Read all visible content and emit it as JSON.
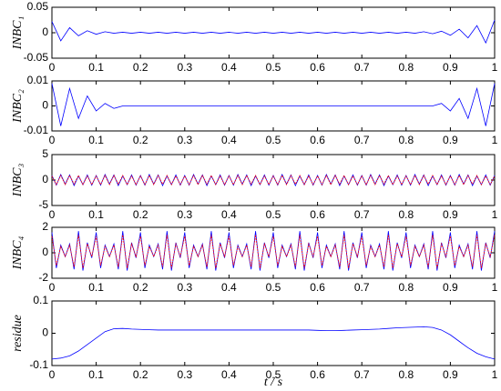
{
  "chart_data": [
    {
      "type": "line",
      "ylabel": "INBC₁",
      "x": [
        0,
        0.02,
        0.04,
        0.06,
        0.08,
        0.1,
        0.12,
        0.14,
        0.16,
        0.18,
        0.2,
        0.22,
        0.24,
        0.26,
        0.28,
        0.3,
        0.32,
        0.34,
        0.36,
        0.38,
        0.4,
        0.42,
        0.44,
        0.46,
        0.48,
        0.5,
        0.52,
        0.54,
        0.56,
        0.58,
        0.6,
        0.62,
        0.64,
        0.66,
        0.68,
        0.7,
        0.72,
        0.74,
        0.76,
        0.78,
        0.8,
        0.82,
        0.84,
        0.86,
        0.88,
        0.9,
        0.92,
        0.94,
        0.96,
        0.98,
        1
      ],
      "values": [
        0.022,
        -0.016,
        0.01,
        -0.006,
        0.004,
        -0.003,
        0.002,
        -0.001,
        0.001,
        -0.001,
        0.001,
        -0.001,
        0.001,
        -0.001,
        0.001,
        -0.001,
        0.001,
        -0.001,
        0.001,
        -0.001,
        0.001,
        -0.001,
        0.001,
        -0.001,
        0.001,
        -0.001,
        0.001,
        -0.001,
        0.001,
        -0.001,
        0.001,
        -0.001,
        0.001,
        -0.001,
        0.001,
        -0.001,
        0.001,
        -0.001,
        0.001,
        -0.001,
        0.001,
        -0.001,
        0.002,
        -0.002,
        0.003,
        -0.005,
        0.007,
        -0.01,
        0.014,
        -0.02,
        0.025
      ],
      "color": "#0000ff",
      "xlim": [
        0,
        1
      ],
      "xticks": [
        0,
        0.1,
        0.2,
        0.3,
        0.4,
        0.5,
        0.6,
        0.7,
        0.8,
        0.9,
        1
      ],
      "ylim": [
        -0.05,
        0.05
      ],
      "yticks": [
        -0.05,
        0,
        0.05
      ]
    },
    {
      "type": "line",
      "ylabel": "INBC₂",
      "x": [
        0,
        0.02,
        0.04,
        0.06,
        0.08,
        0.1,
        0.12,
        0.14,
        0.16,
        0.18,
        0.2,
        0.22,
        0.24,
        0.26,
        0.28,
        0.3,
        0.32,
        0.34,
        0.36,
        0.38,
        0.4,
        0.42,
        0.44,
        0.46,
        0.48,
        0.5,
        0.52,
        0.54,
        0.56,
        0.58,
        0.6,
        0.62,
        0.64,
        0.66,
        0.68,
        0.7,
        0.72,
        0.74,
        0.76,
        0.78,
        0.8,
        0.82,
        0.84,
        0.86,
        0.88,
        0.9,
        0.92,
        0.94,
        0.96,
        0.98,
        1
      ],
      "values": [
        0.009,
        -0.008,
        0.007,
        -0.005,
        0.004,
        -0.002,
        0.001,
        -0.001,
        0,
        0,
        0,
        0,
        0,
        0,
        0,
        0,
        0,
        0,
        0,
        0,
        0,
        0,
        0,
        0,
        0,
        0,
        0,
        0,
        0,
        0,
        0,
        0,
        0,
        0,
        0,
        0,
        0,
        0,
        0,
        0,
        0,
        0,
        0,
        0,
        0.001,
        -0.002,
        0.003,
        -0.005,
        0.007,
        -0.008,
        0.009
      ],
      "color": "#0000ff",
      "xlim": [
        0,
        1
      ],
      "xticks": [
        0,
        0.1,
        0.2,
        0.3,
        0.4,
        0.5,
        0.6,
        0.7,
        0.8,
        0.9,
        1
      ],
      "ylim": [
        -0.01,
        0.01
      ],
      "yticks": [
        -0.01,
        0,
        0.01
      ]
    },
    {
      "type": "line",
      "ylabel": "INBC₃",
      "x": [
        0,
        0.01,
        0.02,
        0.03,
        0.04,
        0.05,
        0.06,
        0.07,
        0.08,
        0.09,
        0.1,
        0.11,
        0.12,
        0.13,
        0.14,
        0.15,
        0.16,
        0.17,
        0.18,
        0.19,
        0.2,
        0.21,
        0.22,
        0.23,
        0.24,
        0.25,
        0.26,
        0.27,
        0.28,
        0.29,
        0.3,
        0.31,
        0.32,
        0.33,
        0.34,
        0.35,
        0.36,
        0.37,
        0.38,
        0.39,
        0.4,
        0.41,
        0.42,
        0.43,
        0.44,
        0.45,
        0.46,
        0.47,
        0.48,
        0.49,
        0.5,
        0.51,
        0.52,
        0.53,
        0.54,
        0.55,
        0.56,
        0.57,
        0.58,
        0.59,
        0.6,
        0.61,
        0.62,
        0.63,
        0.64,
        0.65,
        0.66,
        0.67,
        0.68,
        0.69,
        0.7,
        0.71,
        0.72,
        0.73,
        0.74,
        0.75,
        0.76,
        0.77,
        0.78,
        0.79,
        0.8,
        0.81,
        0.82,
        0.83,
        0.84,
        0.85,
        0.86,
        0.87,
        0.88,
        0.89,
        0.9,
        0.91,
        0.92,
        0.93,
        0.94,
        0.95,
        0.96,
        0.97,
        0.98,
        0.99,
        1
      ],
      "series": [
        {
          "color": "#0000ff",
          "values": [
            0.9,
            -1,
            1.1,
            -0.8,
            1,
            -1.1,
            0.8,
            -0.9,
            1,
            -1,
            0.9,
            -1,
            1.1,
            -0.8,
            1,
            -1.1,
            0.8,
            -0.9,
            1,
            -1,
            0.9,
            -1,
            1.1,
            -0.8,
            1,
            -1.1,
            0.8,
            -0.9,
            1,
            -1,
            0.9,
            -1,
            1.1,
            -0.8,
            1,
            -1.1,
            0.8,
            -0.9,
            1,
            -1,
            0.9,
            -1,
            1.1,
            -0.8,
            1,
            -1.1,
            0.8,
            -0.9,
            1,
            -1,
            0.9,
            -1,
            1.1,
            -0.8,
            1,
            -1.1,
            0.8,
            -0.9,
            1,
            -1,
            0.9,
            -1,
            1.1,
            -0.8,
            1,
            -1.1,
            0.8,
            -0.9,
            1,
            -1,
            0.9,
            -1,
            1.1,
            -0.8,
            1,
            -1.1,
            0.8,
            -0.9,
            1,
            -1,
            0.9,
            -1,
            1.1,
            -0.8,
            1,
            -1.1,
            0.8,
            -0.9,
            1,
            -1,
            0.9,
            -1,
            1.1,
            -0.8,
            1,
            -1.1,
            0.8,
            -0.9,
            1,
            -1,
            0.9
          ]
        },
        {
          "color": "#ff0000",
          "values": [
            0.8,
            -0.9,
            0.9,
            -0.9,
            0.9,
            -0.8,
            0.9,
            -0.9,
            0.8,
            -0.9,
            0.8,
            -0.9,
            0.9,
            -0.9,
            0.9,
            -0.8,
            0.9,
            -0.9,
            0.8,
            -0.9,
            0.8,
            -0.9,
            0.9,
            -0.9,
            0.9,
            -0.8,
            0.9,
            -0.9,
            0.8,
            -0.9,
            0.8,
            -0.9,
            0.9,
            -0.9,
            0.9,
            -0.8,
            0.9,
            -0.9,
            0.8,
            -0.9,
            0.8,
            -0.9,
            0.9,
            -0.9,
            0.9,
            -0.8,
            0.9,
            -0.9,
            0.8,
            -0.9,
            0.8,
            -0.9,
            0.9,
            -0.9,
            0.9,
            -0.8,
            0.9,
            -0.9,
            0.8,
            -0.9,
            0.8,
            -0.9,
            0.9,
            -0.9,
            0.9,
            -0.8,
            0.9,
            -0.9,
            0.8,
            -0.9,
            0.8,
            -0.9,
            0.9,
            -0.9,
            0.9,
            -0.8,
            0.9,
            -0.9,
            0.8,
            -0.9,
            0.8,
            -0.9,
            0.9,
            -0.9,
            0.9,
            -0.8,
            0.9,
            -0.9,
            0.8,
            -0.9,
            0.8,
            -0.9,
            0.9,
            -0.9,
            0.9,
            -0.8,
            0.9,
            -0.9,
            0.8,
            -0.9,
            0.8
          ]
        }
      ],
      "xlim": [
        0,
        1
      ],
      "xticks": [
        0,
        0.1,
        0.2,
        0.3,
        0.4,
        0.5,
        0.6,
        0.7,
        0.8,
        0.9,
        1
      ],
      "ylim": [
        -5,
        5
      ],
      "yticks": [
        -5,
        0,
        5
      ]
    },
    {
      "type": "line",
      "ylabel": "INBC₄",
      "x": [
        0,
        0.01,
        0.02,
        0.03,
        0.04,
        0.05,
        0.06,
        0.07,
        0.08,
        0.09,
        0.1,
        0.11,
        0.12,
        0.13,
        0.14,
        0.15,
        0.16,
        0.17,
        0.18,
        0.19,
        0.2,
        0.21,
        0.22,
        0.23,
        0.24,
        0.25,
        0.26,
        0.27,
        0.28,
        0.29,
        0.3,
        0.31,
        0.32,
        0.33,
        0.34,
        0.35,
        0.36,
        0.37,
        0.38,
        0.39,
        0.4,
        0.41,
        0.42,
        0.43,
        0.44,
        0.45,
        0.46,
        0.47,
        0.48,
        0.49,
        0.5,
        0.51,
        0.52,
        0.53,
        0.54,
        0.55,
        0.56,
        0.57,
        0.58,
        0.59,
        0.6,
        0.61,
        0.62,
        0.63,
        0.64,
        0.65,
        0.66,
        0.67,
        0.68,
        0.69,
        0.7,
        0.71,
        0.72,
        0.73,
        0.74,
        0.75,
        0.76,
        0.77,
        0.78,
        0.79,
        0.8,
        0.81,
        0.82,
        0.83,
        0.84,
        0.85,
        0.86,
        0.87,
        0.88,
        0.89,
        0.9,
        0.91,
        0.92,
        0.93,
        0.94,
        0.95,
        0.96,
        0.97,
        0.98,
        0.99,
        1
      ],
      "series": [
        {
          "color": "#0000ff",
          "values": [
            1.6,
            -1.2,
            0.6,
            -0.3,
            0.7,
            -1.3,
            1.7,
            -1.4,
            0.8,
            -0.4,
            1.6,
            -1.2,
            0.6,
            -0.3,
            0.7,
            -1.3,
            1.7,
            -1.4,
            0.8,
            -0.4,
            1.6,
            -1.2,
            0.6,
            -0.3,
            0.7,
            -1.3,
            1.7,
            -1.4,
            0.8,
            -0.4,
            1.6,
            -1.2,
            0.6,
            -0.3,
            0.7,
            -1.3,
            1.7,
            -1.4,
            0.8,
            -0.4,
            1.6,
            -1.2,
            0.6,
            -0.3,
            0.7,
            -1.3,
            1.7,
            -1.4,
            0.8,
            -0.4,
            1.6,
            -1.2,
            0.6,
            -0.3,
            0.7,
            -1.3,
            1.7,
            -1.4,
            0.8,
            -0.4,
            1.6,
            -1.2,
            0.6,
            -0.3,
            0.7,
            -1.3,
            1.7,
            -1.4,
            0.8,
            -0.4,
            1.6,
            -1.2,
            0.6,
            -0.3,
            0.7,
            -1.3,
            1.7,
            -1.4,
            0.8,
            -0.4,
            1.6,
            -1.2,
            0.6,
            -0.3,
            0.7,
            -1.3,
            1.7,
            -1.4,
            0.8,
            -0.4,
            1.6,
            -1.2,
            0.6,
            -0.3,
            0.7,
            -1.3,
            1.7,
            -1.4,
            0.8,
            -0.4,
            1.7
          ]
        },
        {
          "color": "#ff0000",
          "values": [
            1.3,
            -1,
            0.5,
            -0.3,
            0.6,
            -1.1,
            1.4,
            -1.2,
            0.7,
            -0.3,
            1.3,
            -1,
            0.5,
            -0.3,
            0.6,
            -1.1,
            1.4,
            -1.2,
            0.7,
            -0.3,
            1.3,
            -1,
            0.5,
            -0.3,
            0.6,
            -1.1,
            1.4,
            -1.2,
            0.7,
            -0.3,
            1.3,
            -1,
            0.5,
            -0.3,
            0.6,
            -1.1,
            1.4,
            -1.2,
            0.7,
            -0.3,
            1.3,
            -1,
            0.5,
            -0.3,
            0.6,
            -1.1,
            1.4,
            -1.2,
            0.7,
            -0.3,
            1.3,
            -1,
            0.5,
            -0.3,
            0.6,
            -1.1,
            1.4,
            -1.2,
            0.7,
            -0.3,
            1.3,
            -1,
            0.5,
            -0.3,
            0.6,
            -1.1,
            1.4,
            -1.2,
            0.7,
            -0.3,
            1.3,
            -1,
            0.5,
            -0.3,
            0.6,
            -1.1,
            1.4,
            -1.2,
            0.7,
            -0.3,
            1.3,
            -1,
            0.5,
            -0.3,
            0.6,
            -1.1,
            1.4,
            -1.2,
            0.7,
            -0.3,
            1.3,
            -1,
            0.5,
            -0.3,
            0.6,
            -1.1,
            1.4,
            -1.2,
            0.7,
            -0.3,
            1.4
          ]
        }
      ],
      "xlim": [
        0,
        1
      ],
      "xticks": [
        0,
        0.1,
        0.2,
        0.3,
        0.4,
        0.5,
        0.6,
        0.7,
        0.8,
        0.9,
        1
      ],
      "ylim": [
        -2,
        2
      ],
      "yticks": [
        -2,
        0,
        2
      ]
    },
    {
      "type": "line",
      "ylabel": "residue",
      "xlabel": "t / s",
      "x": [
        0,
        0.02,
        0.04,
        0.06,
        0.08,
        0.1,
        0.12,
        0.14,
        0.16,
        0.18,
        0.2,
        0.22,
        0.24,
        0.26,
        0.28,
        0.3,
        0.32,
        0.34,
        0.36,
        0.38,
        0.4,
        0.42,
        0.44,
        0.46,
        0.48,
        0.5,
        0.52,
        0.54,
        0.56,
        0.58,
        0.6,
        0.62,
        0.64,
        0.66,
        0.68,
        0.7,
        0.72,
        0.74,
        0.76,
        0.78,
        0.8,
        0.82,
        0.84,
        0.86,
        0.88,
        0.9,
        0.92,
        0.94,
        0.96,
        0.98,
        1
      ],
      "values": [
        -0.08,
        -0.077,
        -0.07,
        -0.055,
        -0.035,
        -0.015,
        0.005,
        0.014,
        0.015,
        0.013,
        0.012,
        0.011,
        0.01,
        0.01,
        0.01,
        0.01,
        0.01,
        0.01,
        0.01,
        0.01,
        0.01,
        0.01,
        0.01,
        0.01,
        0.01,
        0.01,
        0.01,
        0.01,
        0.01,
        0.01,
        0.009,
        0.008,
        0.008,
        0.009,
        0.01,
        0.011,
        0.012,
        0.013,
        0.015,
        0.017,
        0.018,
        0.019,
        0.02,
        0.018,
        0.01,
        -0.005,
        -0.025,
        -0.045,
        -0.062,
        -0.073,
        -0.08
      ],
      "color": "#0000ff",
      "xlim": [
        0,
        1
      ],
      "xticks": [
        0,
        0.1,
        0.2,
        0.3,
        0.4,
        0.5,
        0.6,
        0.7,
        0.8,
        0.9,
        1
      ],
      "ylim": [
        -0.1,
        0.1
      ],
      "yticks": [
        -0.1,
        0,
        0.1
      ]
    }
  ]
}
